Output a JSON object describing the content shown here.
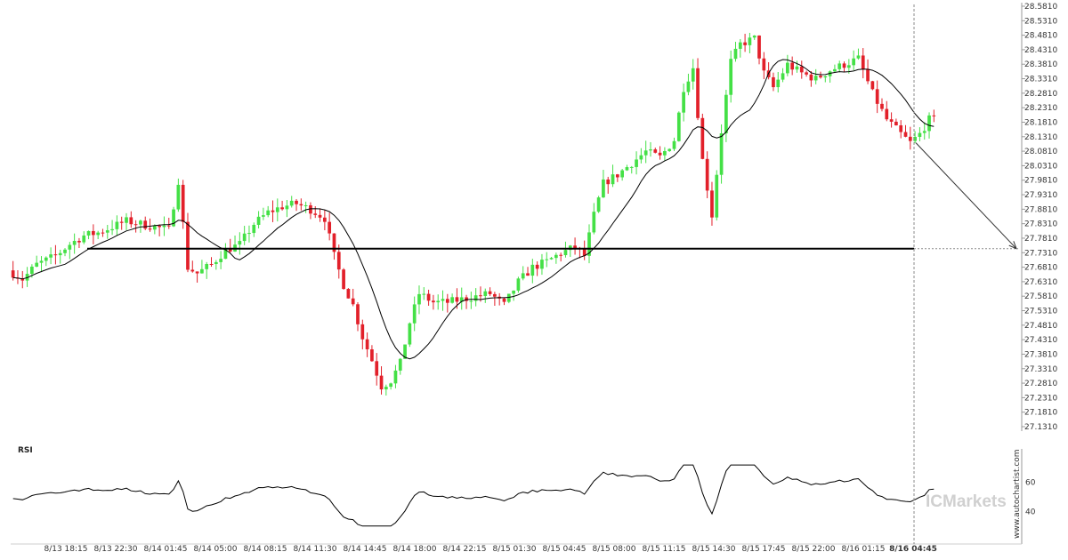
{
  "chart_data": {
    "type": "candlestick",
    "price_axis": {
      "ticks": [
        "28.5810",
        "28.5310",
        "28.4810",
        "28.4310",
        "28.3810",
        "28.3310",
        "28.2810",
        "28.2310",
        "28.1810",
        "28.1310",
        "28.0810",
        "28.0310",
        "27.9810",
        "27.9310",
        "27.8810",
        "27.8310",
        "27.7810",
        "27.7310",
        "27.6810",
        "27.6310",
        "27.5810",
        "27.5310",
        "27.4810",
        "27.4310",
        "27.3810",
        "27.3310",
        "27.2810",
        "27.2310",
        "27.1810",
        "27.1310"
      ],
      "range": [
        27.131,
        28.581
      ]
    },
    "time_axis": {
      "ticks": [
        "8/13 18:15",
        "8/13 22:30",
        "8/14 01:45",
        "8/14 05:00",
        "8/14 08:15",
        "8/14 11:30",
        "8/14 14:45",
        "8/14 18:00",
        "8/14 22:15",
        "8/15 01:30",
        "8/15 04:45",
        "8/15 08:00",
        "8/15 11:15",
        "8/15 14:30",
        "8/15 17:45",
        "8/15 22:00",
        "8/16 01:15",
        "8/16 04:45"
      ],
      "highlighted": "8/16 04:45"
    },
    "support_level": 27.745,
    "forecast_arrow": {
      "from": 28.11,
      "to": 27.745
    },
    "price_path": [
      [
        0,
        27.67
      ],
      [
        3,
        27.64
      ],
      [
        6,
        27.69
      ],
      [
        10,
        27.72
      ],
      [
        13,
        27.76
      ],
      [
        16,
        27.79
      ],
      [
        19,
        27.8
      ],
      [
        22,
        27.82
      ],
      [
        25,
        27.84
      ],
      [
        28,
        27.83
      ],
      [
        31,
        27.82
      ],
      [
        34,
        27.81
      ],
      [
        36,
        27.98
      ],
      [
        38,
        27.68
      ],
      [
        40,
        27.66
      ],
      [
        43,
        27.69
      ],
      [
        46,
        27.74
      ],
      [
        49,
        27.76
      ],
      [
        52,
        27.83
      ],
      [
        55,
        27.87
      ],
      [
        58,
        27.89
      ],
      [
        61,
        27.9
      ],
      [
        64,
        27.88
      ],
      [
        67,
        27.85
      ],
      [
        69,
        27.72
      ],
      [
        71,
        27.62
      ],
      [
        73,
        27.55
      ],
      [
        75,
        27.44
      ],
      [
        77,
        27.36
      ],
      [
        79,
        27.27
      ],
      [
        81,
        27.29
      ],
      [
        83,
        27.35
      ],
      [
        85,
        27.49
      ],
      [
        87,
        27.59
      ],
      [
        90,
        27.56
      ],
      [
        93,
        27.56
      ],
      [
        96,
        27.57
      ],
      [
        99,
        27.58
      ],
      [
        102,
        27.59
      ],
      [
        105,
        27.55
      ],
      [
        108,
        27.63
      ],
      [
        111,
        27.68
      ],
      [
        114,
        27.7
      ],
      [
        117,
        27.73
      ],
      [
        120,
        27.75
      ],
      [
        122,
        27.72
      ],
      [
        124,
        27.86
      ],
      [
        126,
        27.97
      ],
      [
        129,
        28.0
      ],
      [
        132,
        28.04
      ],
      [
        135,
        28.08
      ],
      [
        138,
        28.06
      ],
      [
        141,
        28.12
      ],
      [
        143,
        28.3
      ],
      [
        145,
        28.37
      ],
      [
        147,
        28.05
      ],
      [
        149,
        27.86
      ],
      [
        151,
        28.15
      ],
      [
        153,
        28.39
      ],
      [
        155,
        28.45
      ],
      [
        158,
        28.47
      ],
      [
        160,
        28.35
      ],
      [
        162,
        28.3
      ],
      [
        165,
        28.38
      ],
      [
        168,
        28.35
      ],
      [
        171,
        28.33
      ],
      [
        174,
        28.36
      ],
      [
        177,
        28.38
      ],
      [
        180,
        28.4
      ],
      [
        183,
        28.28
      ],
      [
        186,
        28.19
      ],
      [
        189,
        28.14
      ],
      [
        191,
        28.11
      ],
      [
        193,
        28.14
      ],
      [
        195,
        28.19
      ]
    ],
    "rsi": {
      "label": "RSI",
      "ticks": [
        "60",
        "40"
      ],
      "range": [
        25,
        80
      ]
    }
  },
  "watermark": "ICMarkets",
  "source": "www.autochartist.com",
  "colors": {
    "up": "#44e046",
    "down": "#e2202a",
    "ma": "#000000",
    "support": "#000000",
    "arrow": "#333333"
  }
}
